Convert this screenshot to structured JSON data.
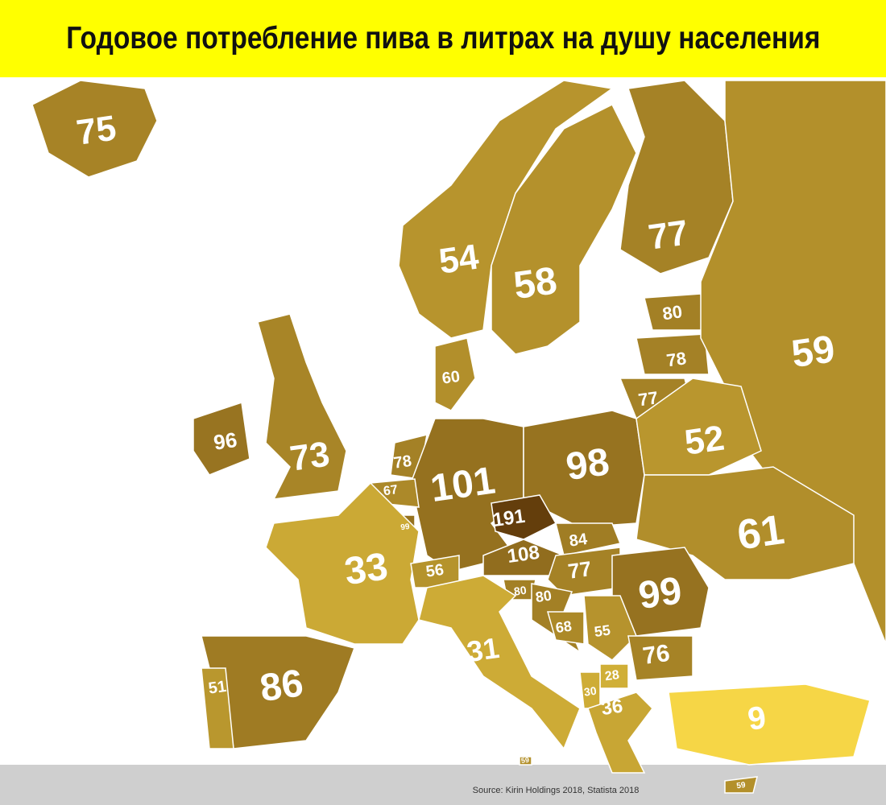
{
  "title": "Годовое потребление пива в литрах на душу населения",
  "regions": [
    {
      "value": 75
    },
    {
      "value": 54
    },
    {
      "value": 58
    },
    {
      "value": 77
    },
    {
      "value": 80
    },
    {
      "value": 78
    },
    {
      "value": 77
    },
    {
      "value": 59
    },
    {
      "value": 60
    },
    {
      "value": 96
    },
    {
      "value": 73
    },
    {
      "value": 78
    },
    {
      "value": 101
    },
    {
      "value": 98
    },
    {
      "value": 52
    },
    {
      "value": 67
    },
    {
      "value": 99
    },
    {
      "value": 191
    },
    {
      "value": 61
    },
    {
      "value": 84
    },
    {
      "value": 108
    },
    {
      "value": 33
    },
    {
      "value": 56
    },
    {
      "value": 77
    },
    {
      "value": 99
    },
    {
      "value": 80
    },
    {
      "value": 80
    },
    {
      "value": 68
    },
    {
      "value": 55
    },
    {
      "value": 31
    },
    {
      "value": 76
    },
    {
      "value": 86
    },
    {
      "value": 51
    },
    {
      "value": 28
    },
    {
      "value": 30
    },
    {
      "value": 36
    },
    {
      "value": 9
    },
    {
      "value": 59
    },
    {
      "value": 59
    }
  ],
  "source": "Source: Kirin Holdings 2018, Statista 2018"
}
